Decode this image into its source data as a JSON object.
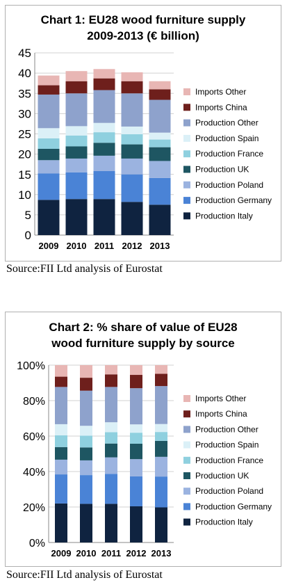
{
  "chart_data": [
    {
      "type": "bar",
      "stacked": true,
      "title_line1": "Chart 1: EU28 wood furniture supply",
      "title_line2": "2009-2013 (€ billion)",
      "xlabel": "",
      "ylabel": "",
      "categories": [
        "2009",
        "2010",
        "2011",
        "2012",
        "2013"
      ],
      "ylim": [
        0,
        45
      ],
      "yticks": [
        "0",
        "5",
        "10",
        "15",
        "20",
        "25",
        "30",
        "35",
        "40",
        "45"
      ],
      "grid": true,
      "legend_position": "right",
      "series": [
        {
          "name": "Production Italy",
          "color": "#0f2340",
          "values": [
            8.7,
            8.9,
            8.9,
            8.2,
            7.5
          ]
        },
        {
          "name": "Production Germany",
          "color": "#4a83d6",
          "values": [
            6.5,
            6.6,
            6.9,
            6.8,
            6.6
          ]
        },
        {
          "name": "Production Poland",
          "color": "#9bb3e0",
          "values": [
            3.3,
            3.4,
            3.8,
            3.9,
            4.2
          ]
        },
        {
          "name": "Production UK",
          "color": "#1e5662",
          "values": [
            2.8,
            3.0,
            3.2,
            3.5,
            3.4
          ]
        },
        {
          "name": "Production France",
          "color": "#8fd0df",
          "values": [
            2.6,
            2.7,
            2.6,
            2.5,
            1.9
          ]
        },
        {
          "name": "Production Spain",
          "color": "#dbf0f7",
          "values": [
            2.5,
            2.3,
            2.3,
            1.9,
            1.7
          ]
        },
        {
          "name": "Production Other",
          "color": "#8ea2cc",
          "values": [
            8.3,
            8.1,
            8.1,
            8.2,
            8.1
          ]
        },
        {
          "name": "Imports China",
          "color": "#6e1f1c",
          "values": [
            2.3,
            3.0,
            2.9,
            3.0,
            2.6
          ]
        },
        {
          "name": "Imports Other",
          "color": "#e8b6b4",
          "values": [
            2.4,
            2.5,
            2.3,
            2.2,
            2.0
          ]
        }
      ]
    },
    {
      "type": "bar",
      "stacked": true,
      "title_line1": "Chart 2: % share of value of EU28",
      "title_line2": "wood furniture supply by source",
      "xlabel": "",
      "ylabel": "",
      "categories": [
        "2009",
        "2010",
        "2011",
        "2012",
        "2013"
      ],
      "ylim": [
        0,
        100
      ],
      "yticks": [
        "0%",
        "20%",
        "40%",
        "60%",
        "80%",
        "100%"
      ],
      "grid": true,
      "legend_position": "right",
      "series": [
        {
          "name": "Production Italy",
          "color": "#0f2340",
          "values": [
            22.0,
            21.8,
            21.8,
            20.4,
            19.8
          ]
        },
        {
          "name": "Production Germany",
          "color": "#4a83d6",
          "values": [
            16.4,
            16.2,
            16.9,
            16.9,
            17.4
          ]
        },
        {
          "name": "Production Poland",
          "color": "#9bb3e0",
          "values": [
            8.3,
            8.3,
            9.3,
            9.7,
            11.1
          ]
        },
        {
          "name": "Production UK",
          "color": "#1e5662",
          "values": [
            7.1,
            7.3,
            7.8,
            8.7,
            9.0
          ]
        },
        {
          "name": "Production France",
          "color": "#8fd0df",
          "values": [
            6.6,
            6.6,
            6.4,
            6.2,
            5.0
          ]
        },
        {
          "name": "Production Spain",
          "color": "#dbf0f7",
          "values": [
            6.3,
            5.6,
            5.6,
            4.7,
            4.5
          ]
        },
        {
          "name": "Production Other",
          "color": "#8ea2cc",
          "values": [
            21.0,
            19.8,
            19.9,
            20.4,
            21.4
          ]
        },
        {
          "name": "Imports China",
          "color": "#6e1f1c",
          "values": [
            5.8,
            7.3,
            7.1,
            7.5,
            6.9
          ]
        },
        {
          "name": "Imports Other",
          "color": "#e8b6b4",
          "values": [
            6.5,
            7.1,
            5.2,
            5.5,
            4.9
          ]
        }
      ]
    }
  ],
  "sources": [
    "Source:FII Ltd analysis of Eurostat",
    "Source:FII Ltd analysis of Eurostat"
  ]
}
